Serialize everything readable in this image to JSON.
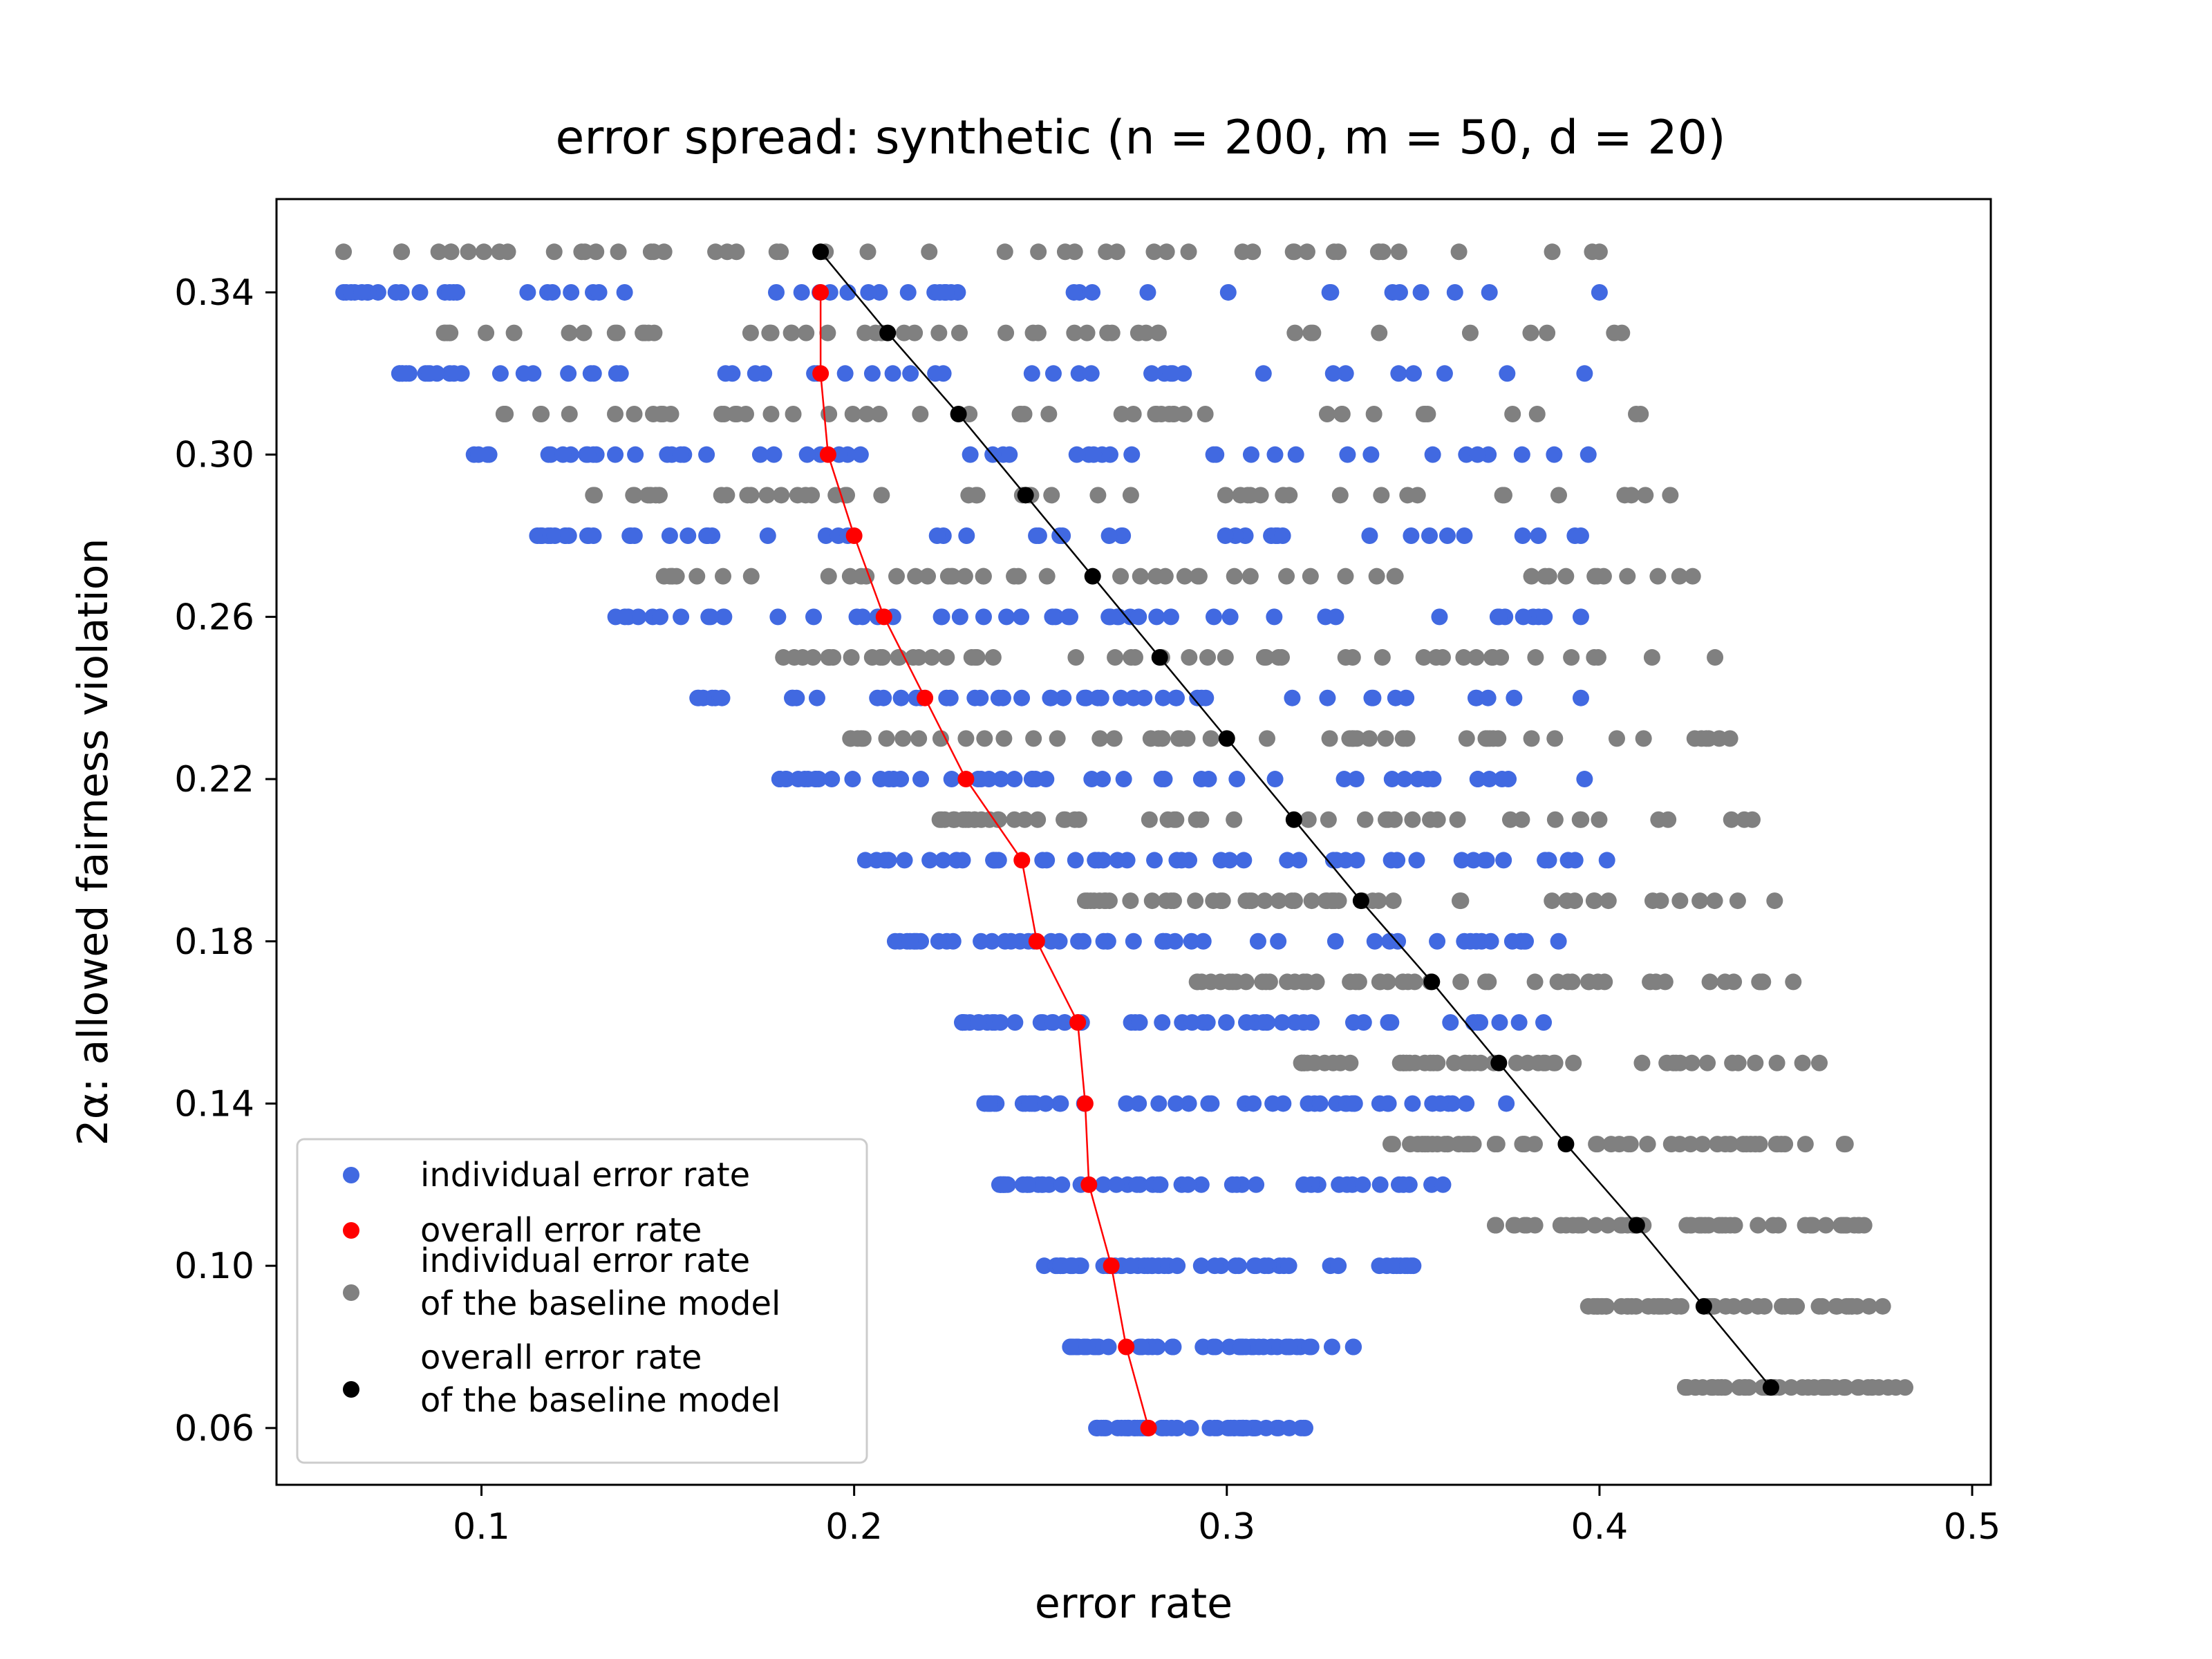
{
  "chart_data": {
    "type": "scatter",
    "title_prefix": "error spread: synthetic (",
    "title_n": "n = 200",
    "title_m": "m = 50",
    "title_d": "d = 20",
    "title_suffix": ")",
    "xlabel": "error rate",
    "ylabel": "2α: allowed fairness violation",
    "xlim": [
      0.045,
      0.505
    ],
    "ylim": [
      0.046,
      0.363
    ],
    "xticks": [
      "0.1",
      "0.2",
      "0.3",
      "0.4",
      "0.5"
    ],
    "yticks": [
      "0.06",
      "0.10",
      "0.14",
      "0.18",
      "0.22",
      "0.26",
      "0.30",
      "0.34"
    ],
    "legend_position": "lower left",
    "colors": {
      "individual": "#4169e1",
      "overall": "#ff0000",
      "baseline_individual": "#808080",
      "baseline_overall": "#000000"
    },
    "legend": [
      {
        "key": "individual",
        "lines": [
          "individual error rate"
        ]
      },
      {
        "key": "overall",
        "lines": [
          "overall error rate"
        ]
      },
      {
        "key": "baseline_individual",
        "lines": [
          "individual error rate",
          " of the baseline model"
        ]
      },
      {
        "key": "baseline_overall",
        "lines": [
          "overall error rate",
          " of the baseline model"
        ]
      }
    ],
    "individual_spread": [
      {
        "y": 0.34,
        "min": 0.063,
        "max": 0.4
      },
      {
        "y": 0.32,
        "min": 0.078,
        "max": 0.396
      },
      {
        "y": 0.3,
        "min": 0.098,
        "max": 0.397
      },
      {
        "y": 0.28,
        "min": 0.115,
        "max": 0.395
      },
      {
        "y": 0.26,
        "min": 0.136,
        "max": 0.395
      },
      {
        "y": 0.24,
        "min": 0.158,
        "max": 0.395
      },
      {
        "y": 0.22,
        "min": 0.18,
        "max": 0.396
      },
      {
        "y": 0.2,
        "min": 0.203,
        "max": 0.402
      },
      {
        "y": 0.18,
        "min": 0.211,
        "max": 0.389
      },
      {
        "y": 0.16,
        "min": 0.229,
        "max": 0.385
      },
      {
        "y": 0.14,
        "min": 0.235,
        "max": 0.375
      },
      {
        "y": 0.12,
        "min": 0.239,
        "max": 0.358
      },
      {
        "y": 0.1,
        "min": 0.251,
        "max": 0.35
      },
      {
        "y": 0.08,
        "min": 0.258,
        "max": 0.334
      },
      {
        "y": 0.06,
        "min": 0.265,
        "max": 0.321
      }
    ],
    "baseline_spread": [
      {
        "y": 0.35,
        "min": 0.063,
        "max": 0.4
      },
      {
        "y": 0.33,
        "min": 0.09,
        "max": 0.406
      },
      {
        "y": 0.31,
        "min": 0.106,
        "max": 0.411
      },
      {
        "y": 0.29,
        "min": 0.13,
        "max": 0.419
      },
      {
        "y": 0.27,
        "min": 0.149,
        "max": 0.425
      },
      {
        "y": 0.25,
        "min": 0.181,
        "max": 0.431
      },
      {
        "y": 0.23,
        "min": 0.199,
        "max": 0.435
      },
      {
        "y": 0.21,
        "min": 0.223,
        "max": 0.441
      },
      {
        "y": 0.19,
        "min": 0.262,
        "max": 0.447
      },
      {
        "y": 0.17,
        "min": 0.292,
        "max": 0.452
      },
      {
        "y": 0.15,
        "min": 0.32,
        "max": 0.459
      },
      {
        "y": 0.13,
        "min": 0.344,
        "max": 0.466
      },
      {
        "y": 0.11,
        "min": 0.372,
        "max": 0.471
      },
      {
        "y": 0.09,
        "min": 0.397,
        "max": 0.476
      },
      {
        "y": 0.07,
        "min": 0.423,
        "max": 0.482
      }
    ],
    "overall": {
      "x": [
        0.191,
        0.191,
        0.193,
        0.2,
        0.208,
        0.219,
        0.23,
        0.245,
        0.249,
        0.26,
        0.262,
        0.263,
        0.269,
        0.273,
        0.279
      ],
      "y": [
        0.34,
        0.32,
        0.3,
        0.28,
        0.26,
        0.24,
        0.22,
        0.2,
        0.18,
        0.16,
        0.14,
        0.12,
        0.1,
        0.08,
        0.06
      ]
    },
    "baseline_overall": {
      "x": [
        0.191,
        0.209,
        0.228,
        0.246,
        0.264,
        0.282,
        0.3,
        0.318,
        0.336,
        0.355,
        0.373,
        0.391,
        0.41,
        0.428,
        0.446
      ],
      "y": [
        0.35,
        0.33,
        0.31,
        0.29,
        0.27,
        0.25,
        0.23,
        0.21,
        0.19,
        0.17,
        0.15,
        0.13,
        0.11,
        0.09,
        0.07
      ]
    }
  }
}
